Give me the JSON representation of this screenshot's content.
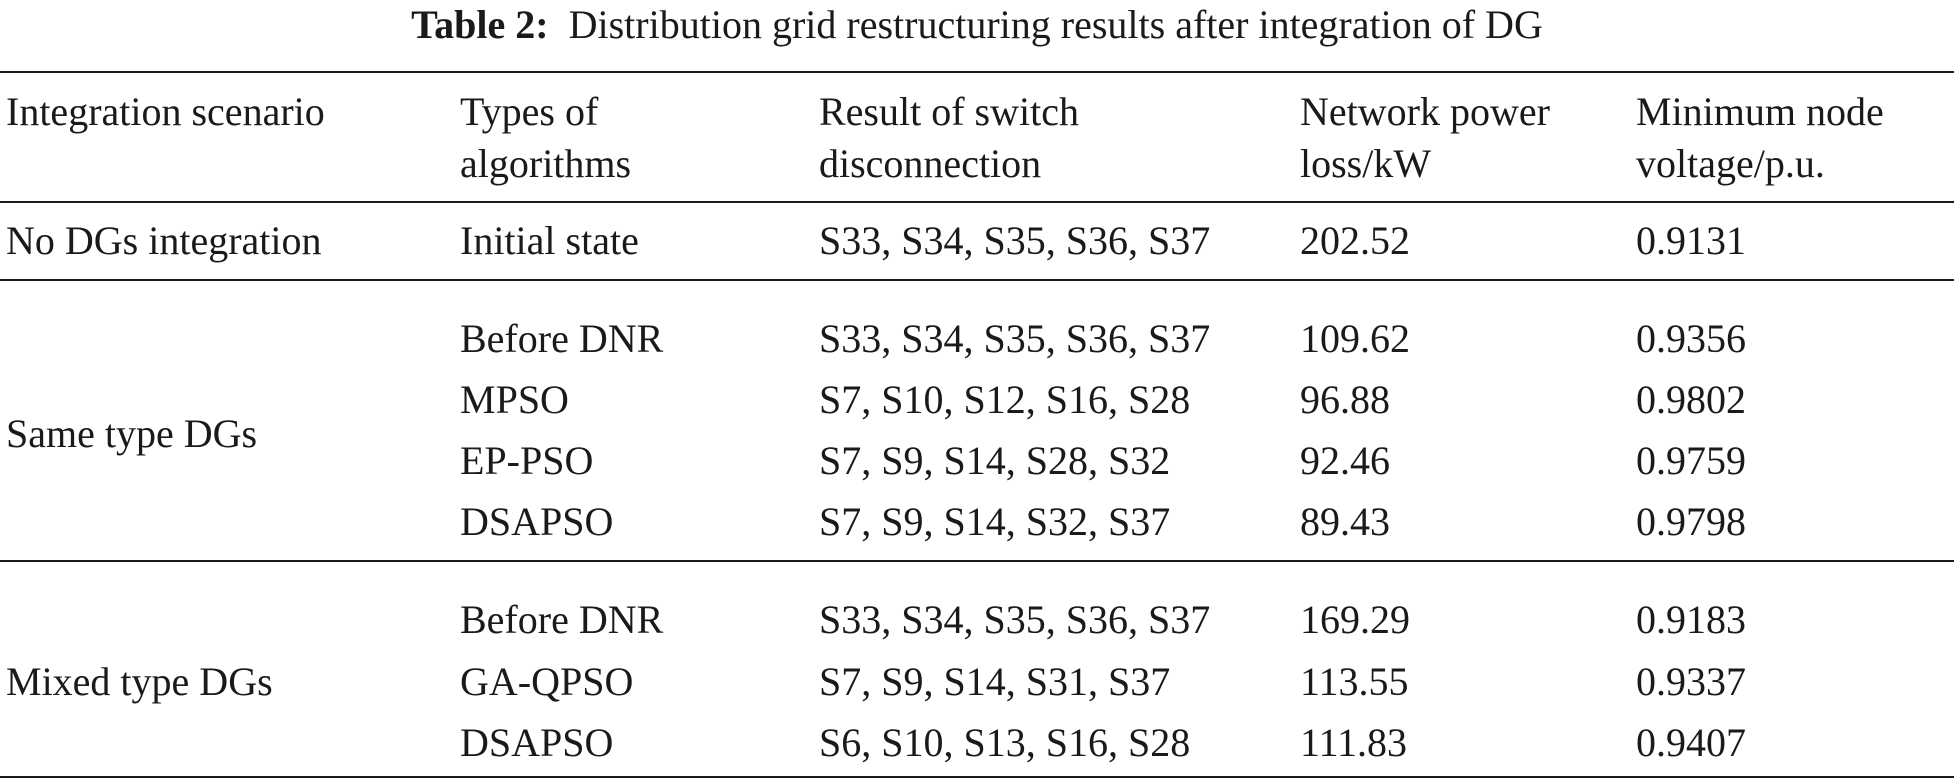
{
  "caption": {
    "label": "Table 2:",
    "title": "Distribution grid restructuring results after integration of DG"
  },
  "columns": [
    {
      "line1": "Integration scenario",
      "line2": ""
    },
    {
      "line1": "Types of",
      "line2": "algorithms"
    },
    {
      "line1": "Result of switch",
      "line2": "disconnection"
    },
    {
      "line1": "Network power",
      "line2": "loss/kW"
    },
    {
      "line1": "Minimum node",
      "line2": "voltage/p.u."
    }
  ],
  "groups": [
    {
      "scenario": "No DGs integration",
      "rows": [
        {
          "algorithm": "Initial state",
          "switches": "S33, S34, S35, S36, S37",
          "loss": "202.52",
          "voltage": "0.9131"
        }
      ]
    },
    {
      "scenario": "Same type DGs",
      "rows": [
        {
          "algorithm": "Before DNR",
          "switches": "S33, S34, S35, S36, S37",
          "loss": "109.62",
          "voltage": "0.9356"
        },
        {
          "algorithm": "MPSO",
          "switches": "S7, S10, S12, S16, S28",
          "loss": "96.88",
          "voltage": "0.9802"
        },
        {
          "algorithm": "EP-PSO",
          "switches": "S7, S9, S14, S28, S32",
          "loss": "92.46",
          "voltage": "0.9759"
        },
        {
          "algorithm": "DSAPSO",
          "switches": "S7, S9, S14, S32, S37",
          "loss": "89.43",
          "voltage": "0.9798"
        }
      ]
    },
    {
      "scenario": "Mixed type DGs",
      "rows": [
        {
          "algorithm": "Before DNR",
          "switches": "S33, S34, S35, S36, S37",
          "loss": "169.29",
          "voltage": "0.9183"
        },
        {
          "algorithm": "GA-QPSO",
          "switches": "S7, S9, S14, S31, S37",
          "loss": "113.55",
          "voltage": "0.9337"
        },
        {
          "algorithm": "DSAPSO",
          "switches": "S6, S10, S13, S16, S28",
          "loss": "111.83",
          "voltage": "0.9407"
        }
      ]
    }
  ]
}
